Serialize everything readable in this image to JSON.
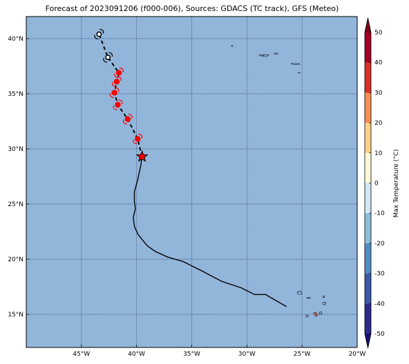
{
  "title": "Forecast of 2023091206 (f000-006), Sources: GDACS (TC track), GFS (Meteo)",
  "map": {
    "lon_range": [
      -50,
      -20
    ],
    "lat_range": [
      12,
      42
    ],
    "lon_ticks": [
      {
        "value": -45,
        "label": "45°W"
      },
      {
        "value": -40,
        "label": "40°W"
      },
      {
        "value": -35,
        "label": "35°W"
      },
      {
        "value": -30,
        "label": "30°W"
      },
      {
        "value": -25,
        "label": "25°W"
      },
      {
        "value": -20,
        "label": "20°W"
      }
    ],
    "lat_ticks": [
      {
        "value": 15,
        "label": "15°N"
      },
      {
        "value": 20,
        "label": "20°N"
      },
      {
        "value": 25,
        "label": "25°N"
      },
      {
        "value": 30,
        "label": "30°N"
      },
      {
        "value": 35,
        "label": "35°N"
      },
      {
        "value": 40,
        "label": "40°N"
      }
    ],
    "grid": true,
    "ocean_color": "#92b5da",
    "past_track_color": "#000000",
    "forecast_track_color": "#000000",
    "forecast_marker_color": "#ff0000",
    "extratropical_marker_color": "#ffffff",
    "current_position_marker": "star-icon",
    "current_position": {
      "lon": -39.5,
      "lat": 29.3
    },
    "past_track": [
      {
        "lon": -26.4,
        "lat": 15.7
      },
      {
        "lon": -27.8,
        "lat": 16.5
      },
      {
        "lon": -28.3,
        "lat": 16.8
      },
      {
        "lon": -29.3,
        "lat": 16.8
      },
      {
        "lon": -30.5,
        "lat": 17.4
      },
      {
        "lon": -32.3,
        "lat": 18.0
      },
      {
        "lon": -34.0,
        "lat": 18.9
      },
      {
        "lon": -35.8,
        "lat": 19.8
      },
      {
        "lon": -37.2,
        "lat": 20.2
      },
      {
        "lon": -38.3,
        "lat": 20.7
      },
      {
        "lon": -39.0,
        "lat": 21.2
      },
      {
        "lon": -39.6,
        "lat": 21.9
      },
      {
        "lon": -39.9,
        "lat": 22.3
      },
      {
        "lon": -40.2,
        "lat": 23.0
      },
      {
        "lon": -40.3,
        "lat": 23.8
      },
      {
        "lon": -40.1,
        "lat": 24.6
      },
      {
        "lon": -40.2,
        "lat": 25.2
      },
      {
        "lon": -40.2,
        "lat": 26.1
      },
      {
        "lon": -39.9,
        "lat": 27.2
      },
      {
        "lon": -39.6,
        "lat": 28.6
      },
      {
        "lon": -39.5,
        "lat": 29.3
      }
    ],
    "forecast_track": [
      {
        "lon": -39.5,
        "lat": 29.3,
        "type": "tropical"
      },
      {
        "lon": -39.9,
        "lat": 30.9,
        "type": "tropical"
      },
      {
        "lon": -40.8,
        "lat": 32.7,
        "type": "tropical"
      },
      {
        "lon": -41.7,
        "lat": 34.0,
        "type": "tropical"
      },
      {
        "lon": -42.0,
        "lat": 35.1,
        "type": "tropical"
      },
      {
        "lon": -41.8,
        "lat": 36.1,
        "type": "tropical"
      },
      {
        "lon": -41.6,
        "lat": 36.9,
        "type": "tropical"
      },
      {
        "lon": -42.6,
        "lat": 38.3,
        "type": "extratropical"
      },
      {
        "lon": -43.4,
        "lat": 40.4,
        "type": "extratropical"
      }
    ],
    "colorbar": {
      "label": "Max Temperature (°C)",
      "min": -50,
      "max": 50,
      "ticks": [
        -50,
        -40,
        -30,
        -20,
        -10,
        0,
        10,
        20,
        30,
        40,
        50
      ],
      "bins": [
        {
          "from": -50,
          "to": -40,
          "color": "#2c2a8c"
        },
        {
          "from": -40,
          "to": -30,
          "color": "#3a5aa8"
        },
        {
          "from": -30,
          "to": -20,
          "color": "#4f8cc0"
        },
        {
          "from": -20,
          "to": -10,
          "color": "#8cbfdc"
        },
        {
          "from": -10,
          "to": 0,
          "color": "#d0e9f2"
        },
        {
          "from": 0,
          "to": 10,
          "color": "#fbf8d8"
        },
        {
          "from": 10,
          "to": 20,
          "color": "#fdd08a"
        },
        {
          "from": 20,
          "to": 30,
          "color": "#f88d52"
        },
        {
          "from": 30,
          "to": 40,
          "color": "#d73027"
        },
        {
          "from": 40,
          "to": 50,
          "color": "#a50026"
        }
      ],
      "below_color": "#1a1070",
      "above_color": "#7a0018"
    }
  }
}
